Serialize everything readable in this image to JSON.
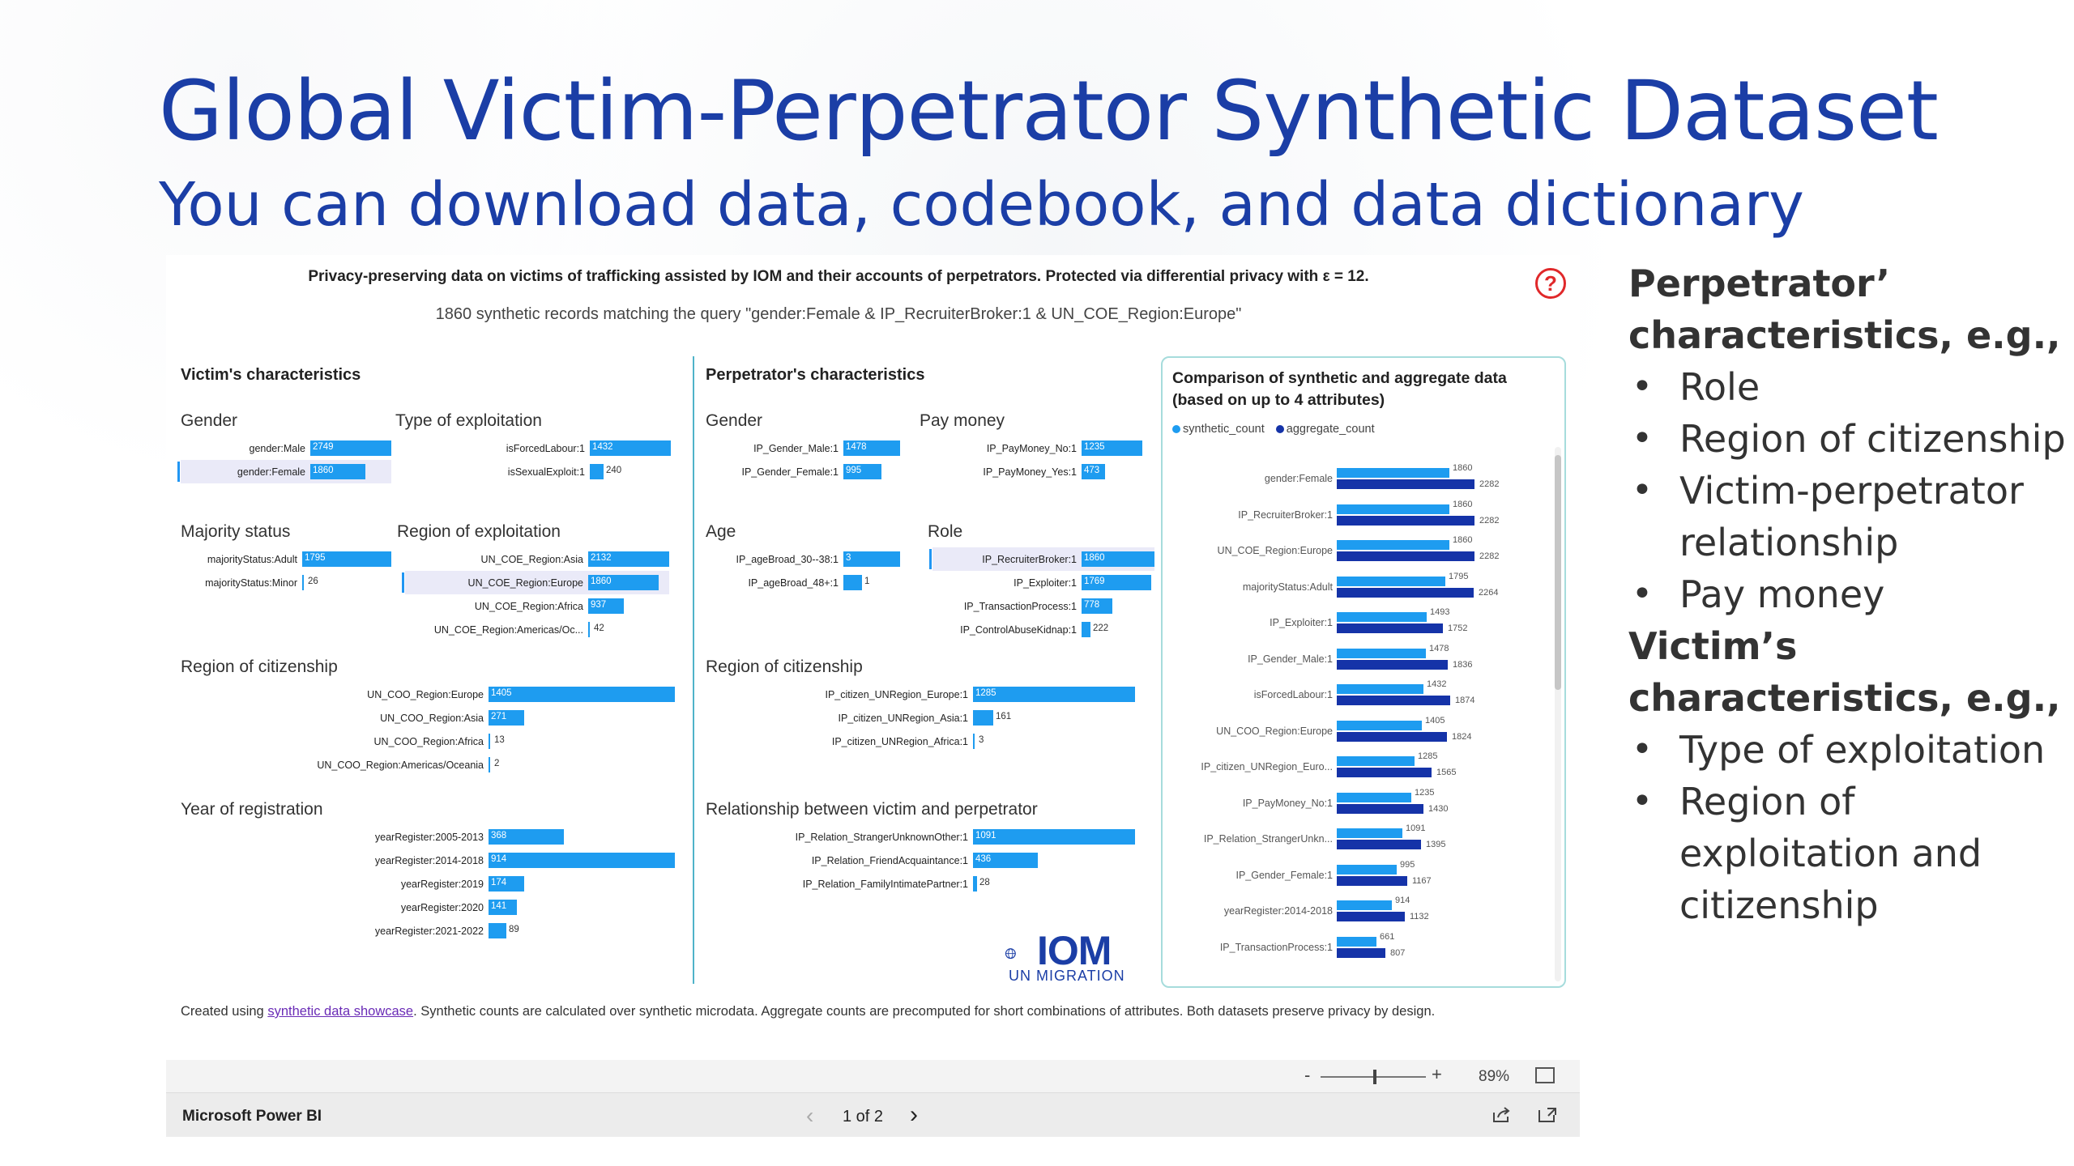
{
  "slide": {
    "title": "Global Victim-Perpetrator Synthetic Dataset",
    "subtitle": "You can download data, codebook, and data dictionary"
  },
  "side": {
    "heading1": "Perpetrator’ characteristics, e.g.,",
    "items1": [
      "Role",
      "Region of citizenship",
      "Victim-perpetrator relationship",
      "Pay money"
    ],
    "heading2": "Victim’s characteristics, e.g.,",
    "items2": [
      "Type of exploitation",
      "Region of exploitation and citizenship"
    ]
  },
  "report": {
    "header": "Privacy-preserving data on victims of trafficking assisted by IOM and their accounts of perpetrators. Protected via differential privacy with ε = 12.",
    "subheader": "1860 synthetic records matching the query \"gender:Female & IP_RecruiterBroker:1 & UN_COE_Region:Europe\"",
    "help_icon": "?",
    "victim_title": "Victim's characteristics",
    "perp_title": "Perpetrator's characteristics",
    "footnote_pre": "Created using ",
    "footnote_link": "synthetic data showcase",
    "footnote_post": ". Synthetic counts are calculated over synthetic microdata. Aggregate counts are precomputed for short combinations of attributes. Both datasets preserve privacy by design.",
    "logo_text": "IOM",
    "logo_sub": "UN MIGRATION",
    "bar_color": "#1e9cf0",
    "aggregate_color": "#1533a8"
  },
  "groups": {
    "v_gender": {
      "title": "Gender",
      "max": 2749,
      "rows": [
        {
          "label": "gender:Male",
          "value": 2749,
          "sel": false
        },
        {
          "label": "gender:Female",
          "value": 1860,
          "sel": true
        }
      ]
    },
    "v_exploit": {
      "title": "Type of exploitation",
      "max": 1432,
      "rows": [
        {
          "label": "isForcedLabour:1",
          "value": 1432,
          "sel": false
        },
        {
          "label": "isSexualExploit:1",
          "value": 240,
          "sel": false
        }
      ]
    },
    "v_majority": {
      "title": "Majority status",
      "max": 1795,
      "rows": [
        {
          "label": "majorityStatus:Adult",
          "value": 1795,
          "sel": false
        },
        {
          "label": "majorityStatus:Minor",
          "value": 26,
          "sel": false
        }
      ]
    },
    "v_region_exp": {
      "title": "Region of exploitation",
      "max": 2132,
      "rows": [
        {
          "label": "UN_COE_Region:Asia",
          "value": 2132,
          "sel": false
        },
        {
          "label": "UN_COE_Region:Europe",
          "value": 1860,
          "sel": true
        },
        {
          "label": "UN_COE_Region:Africa",
          "value": 937,
          "sel": false
        },
        {
          "label": "UN_COE_Region:Americas/Oc...",
          "value": 42,
          "sel": false
        }
      ]
    },
    "v_region_cit": {
      "title": "Region of citizenship",
      "max": 1405,
      "rows": [
        {
          "label": "UN_COO_Region:Europe",
          "value": 1405,
          "sel": false
        },
        {
          "label": "UN_COO_Region:Asia",
          "value": 271,
          "sel": false
        },
        {
          "label": "UN_COO_Region:Africa",
          "value": 13,
          "sel": false
        },
        {
          "label": "UN_COO_Region:Americas/Oceania",
          "value": 2,
          "sel": false
        }
      ]
    },
    "v_year": {
      "title": "Year of registration",
      "max": 914,
      "rows": [
        {
          "label": "yearRegister:2005-2013",
          "value": 368,
          "sel": false
        },
        {
          "label": "yearRegister:2014-2018",
          "value": 914,
          "sel": false
        },
        {
          "label": "yearRegister:2019",
          "value": 174,
          "sel": false
        },
        {
          "label": "yearRegister:2020",
          "value": 141,
          "sel": false
        },
        {
          "label": "yearRegister:2021-2022",
          "value": 89,
          "sel": false
        }
      ]
    },
    "p_gender": {
      "title": "Gender",
      "max": 1478,
      "rows": [
        {
          "label": "IP_Gender_Male:1",
          "value": 1478,
          "sel": false
        },
        {
          "label": "IP_Gender_Female:1",
          "value": 995,
          "sel": false
        }
      ]
    },
    "p_pay": {
      "title": "Pay money",
      "max": 1235,
      "rows": [
        {
          "label": "IP_PayMoney_No:1",
          "value": 1235,
          "sel": false
        },
        {
          "label": "IP_PayMoney_Yes:1",
          "value": 473,
          "sel": false
        }
      ]
    },
    "p_age": {
      "title": "Age",
      "max": 3,
      "rows": [
        {
          "label": "IP_ageBroad_30--38:1",
          "value": 3,
          "sel": false
        },
        {
          "label": "IP_ageBroad_48+:1",
          "value": 1,
          "sel": false
        }
      ]
    },
    "p_role": {
      "title": "Role",
      "max": 1860,
      "rows": [
        {
          "label": "IP_RecruiterBroker:1",
          "value": 1860,
          "sel": true
        },
        {
          "label": "IP_Exploiter:1",
          "value": 1769,
          "sel": false
        },
        {
          "label": "IP_TransactionProcess:1",
          "value": 778,
          "sel": false
        },
        {
          "label": "IP_ControlAbuseKidnap:1",
          "value": 222,
          "sel": false
        }
      ]
    },
    "p_region_cit": {
      "title": "Region of citizenship",
      "max": 1285,
      "rows": [
        {
          "label": "IP_citizen_UNRegion_Europe:1",
          "value": 1285,
          "sel": false
        },
        {
          "label": "IP_citizen_UNRegion_Asia:1",
          "value": 161,
          "sel": false
        },
        {
          "label": "IP_citizen_UNRegion_Africa:1",
          "value": 3,
          "sel": false
        }
      ]
    },
    "p_relation": {
      "title": "Relationship between victim and perpetrator",
      "max": 1091,
      "rows": [
        {
          "label": "IP_Relation_StrangerUnknownOther:1",
          "value": 1091,
          "sel": false
        },
        {
          "label": "IP_Relation_FriendAcquaintance:1",
          "value": 436,
          "sel": false
        },
        {
          "label": "IP_Relation_FamilyIntimatePartner:1",
          "value": 28,
          "sel": false
        }
      ]
    }
  },
  "comparison": {
    "title": "Comparison of synthetic and aggregate data (based on up to 4 attributes)",
    "legend": [
      "synthetic_count",
      "aggregate_count"
    ],
    "max": 2282,
    "rows": [
      {
        "label": "gender:Female",
        "synthetic": 1860,
        "aggregate": 2282
      },
      {
        "label": "IP_RecruiterBroker:1",
        "synthetic": 1860,
        "aggregate": 2282
      },
      {
        "label": "UN_COE_Region:Europe",
        "synthetic": 1860,
        "aggregate": 2282
      },
      {
        "label": "majorityStatus:Adult",
        "synthetic": 1795,
        "aggregate": 2264
      },
      {
        "label": "IP_Exploiter:1",
        "synthetic": 1493,
        "aggregate": 1752
      },
      {
        "label": "IP_Gender_Male:1",
        "synthetic": 1478,
        "aggregate": 1836
      },
      {
        "label": "isForcedLabour:1",
        "synthetic": 1432,
        "aggregate": 1874
      },
      {
        "label": "UN_COO_Region:Europe",
        "synthetic": 1405,
        "aggregate": 1824
      },
      {
        "label": "IP_citizen_UNRegion_Euro...",
        "synthetic": 1285,
        "aggregate": 1565
      },
      {
        "label": "IP_PayMoney_No:1",
        "synthetic": 1235,
        "aggregate": 1430
      },
      {
        "label": "IP_Relation_StrangerUnkn...",
        "synthetic": 1091,
        "aggregate": 1395
      },
      {
        "label": "IP_Gender_Female:1",
        "synthetic": 995,
        "aggregate": 1167
      },
      {
        "label": "yearRegister:2014-2018",
        "synthetic": 914,
        "aggregate": 1132
      },
      {
        "label": "IP_TransactionProcess:1",
        "synthetic": 661,
        "aggregate": 807
      }
    ]
  },
  "pbi": {
    "zoom_minus": "-",
    "zoom_plus": "+",
    "zoom_pct": "89%",
    "app_name": "Microsoft Power BI",
    "page_indicator": "1 of 2",
    "prev": "‹",
    "next": "›"
  }
}
